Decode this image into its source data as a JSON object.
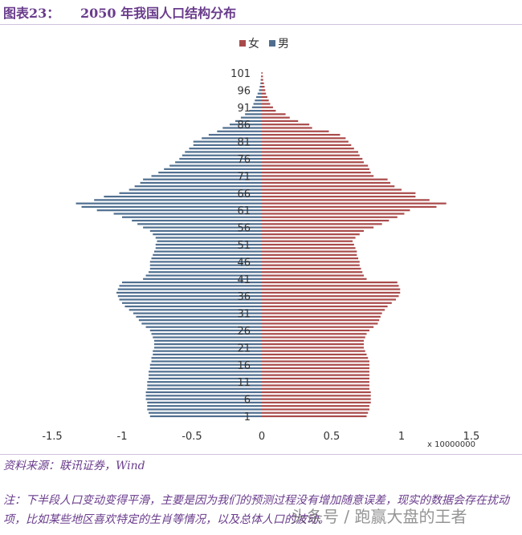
{
  "header": {
    "figure_label": "图表23：",
    "title": "2050 年我国人口结构分布"
  },
  "footer": {
    "source": "资料来源：联讯证券，Wind",
    "note": "注：下半段人口变动变得平滑，主要是因为我们的预测过程没有增加随意误差，现实的数据会存在扰动项，比如某些地区喜欢特定的生肖等情况，以及总体人口的波动。",
    "watermark": "头条号 / 跑赢大盘的王者"
  },
  "colors": {
    "female": "#a94a4a",
    "male": "#4f6e8f",
    "title": "#6a3c8c"
  },
  "chart_data": {
    "type": "bar",
    "orientation": "horizontal",
    "subtype": "population-pyramid",
    "x_multiplier_label": "x 10000000",
    "xlim": [
      -1.5,
      1.5
    ],
    "x_ticks": [
      -1.5,
      -1,
      -0.5,
      0,
      0.5,
      1,
      1.5
    ],
    "x_tick_labels": [
      "-1.5",
      "-1",
      "-0.5",
      "0",
      "0.5",
      "1",
      "1.5"
    ],
    "y_tick_ages": [
      1,
      6,
      11,
      16,
      21,
      26,
      31,
      36,
      41,
      46,
      51,
      56,
      61,
      66,
      71,
      76,
      81,
      86,
      91,
      96,
      101
    ],
    "legend": [
      "女",
      "男"
    ],
    "legend_position": "top",
    "ages": [
      1,
      2,
      3,
      4,
      5,
      6,
      7,
      8,
      9,
      10,
      11,
      12,
      13,
      14,
      15,
      16,
      17,
      18,
      19,
      20,
      21,
      22,
      23,
      24,
      25,
      26,
      27,
      28,
      29,
      30,
      31,
      32,
      33,
      34,
      35,
      36,
      37,
      38,
      39,
      40,
      41,
      42,
      43,
      44,
      45,
      46,
      47,
      48,
      49,
      50,
      51,
      52,
      53,
      54,
      55,
      56,
      57,
      58,
      59,
      60,
      61,
      62,
      63,
      64,
      65,
      66,
      67,
      68,
      69,
      70,
      71,
      72,
      73,
      74,
      75,
      76,
      77,
      78,
      79,
      80,
      81,
      82,
      83,
      84,
      85,
      86,
      87,
      88,
      89,
      90,
      91,
      92,
      93,
      94,
      95,
      96,
      97,
      98,
      99,
      100,
      101
    ],
    "series": [
      {
        "name": "女",
        "values": [
          0.75,
          0.76,
          0.77,
          0.77,
          0.78,
          0.78,
          0.78,
          0.78,
          0.77,
          0.77,
          0.77,
          0.77,
          0.77,
          0.77,
          0.77,
          0.77,
          0.77,
          0.76,
          0.75,
          0.74,
          0.73,
          0.73,
          0.73,
          0.74,
          0.75,
          0.77,
          0.8,
          0.83,
          0.84,
          0.85,
          0.86,
          0.88,
          0.9,
          0.93,
          0.96,
          0.98,
          0.99,
          0.99,
          0.98,
          0.97,
          0.75,
          0.73,
          0.72,
          0.71,
          0.7,
          0.7,
          0.69,
          0.68,
          0.68,
          0.67,
          0.66,
          0.65,
          0.67,
          0.7,
          0.73,
          0.8,
          0.86,
          0.91,
          0.97,
          1.02,
          1.06,
          1.25,
          1.32,
          1.2,
          1.1,
          1.1,
          1.0,
          0.95,
          0.92,
          0.9,
          0.8,
          0.78,
          0.77,
          0.76,
          0.73,
          0.72,
          0.7,
          0.69,
          0.66,
          0.64,
          0.62,
          0.6,
          0.56,
          0.48,
          0.36,
          0.34,
          0.26,
          0.2,
          0.17,
          0.1,
          0.08,
          0.06,
          0.05,
          0.04,
          0.03,
          0.025,
          0.02,
          0.015,
          0.01,
          0.008,
          0.005
        ]
      },
      {
        "name": "男",
        "values": [
          0.8,
          0.81,
          0.82,
          0.82,
          0.82,
          0.83,
          0.83,
          0.83,
          0.82,
          0.82,
          0.82,
          0.81,
          0.81,
          0.81,
          0.8,
          0.8,
          0.79,
          0.79,
          0.78,
          0.78,
          0.77,
          0.77,
          0.77,
          0.78,
          0.79,
          0.8,
          0.83,
          0.86,
          0.88,
          0.9,
          0.92,
          0.95,
          0.98,
          1.0,
          1.02,
          1.03,
          1.04,
          1.03,
          1.02,
          1.0,
          0.85,
          0.83,
          0.81,
          0.8,
          0.8,
          0.8,
          0.79,
          0.78,
          0.77,
          0.76,
          0.76,
          0.75,
          0.76,
          0.78,
          0.8,
          0.85,
          0.89,
          0.93,
          1.0,
          1.06,
          1.18,
          1.29,
          1.33,
          1.2,
          1.13,
          1.02,
          0.95,
          0.91,
          0.87,
          0.85,
          0.79,
          0.74,
          0.7,
          0.66,
          0.62,
          0.59,
          0.57,
          0.55,
          0.52,
          0.49,
          0.49,
          0.43,
          0.38,
          0.32,
          0.28,
          0.23,
          0.19,
          0.15,
          0.12,
          0.09,
          0.07,
          0.06,
          0.05,
          0.04,
          0.03,
          0.02,
          0.015,
          0.01,
          0.008,
          0.005,
          0.003
        ]
      }
    ]
  }
}
